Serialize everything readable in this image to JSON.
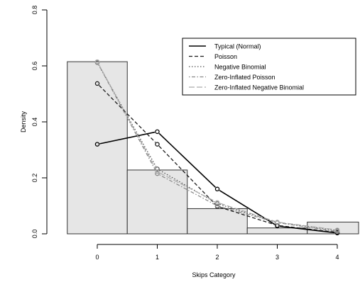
{
  "chart_data": {
    "type": "bar",
    "xlabel": "Skips Category",
    "ylabel": "Density",
    "xlim": [
      -0.5,
      4.5
    ],
    "ylim": [
      0,
      0.8
    ],
    "x_ticks": [
      0,
      1,
      2,
      3,
      4
    ],
    "x_tick_labels": [
      "0",
      "1",
      "2",
      "3",
      "4"
    ],
    "y_ticks": [
      0.0,
      0.2,
      0.4,
      0.6,
      0.8
    ],
    "y_tick_labels": [
      "0.0",
      "0.2",
      "0.4",
      "0.6",
      "0.8"
    ],
    "grid": false,
    "legend_position": "top-right",
    "bars": {
      "categories": [
        0,
        1,
        2,
        3,
        4
      ],
      "values": [
        0.615,
        0.228,
        0.09,
        0.021,
        0.042
      ]
    },
    "series": [
      {
        "name": "Typical (Normal)",
        "x": [
          0,
          1,
          2,
          3,
          4
        ],
        "values": [
          0.32,
          0.365,
          0.16,
          0.028,
          0.003
        ],
        "color": "#000000",
        "dash": "solid",
        "width": 1.6
      },
      {
        "name": "Poisson",
        "x": [
          0,
          1,
          2,
          3,
          4
        ],
        "values": [
          0.537,
          0.32,
          0.098,
          0.03,
          0.005
        ],
        "color": "#1a1a1a",
        "dash": "dashed",
        "width": 1.3
      },
      {
        "name": "Negative Binomial",
        "x": [
          0,
          1,
          2,
          3,
          4
        ],
        "values": [
          0.612,
          0.232,
          0.108,
          0.04,
          0.012
        ],
        "color": "#555555",
        "dash": "dotted",
        "width": 1.3
      },
      {
        "name": "Zero-Inflated Poisson",
        "x": [
          0,
          1,
          2,
          3,
          4
        ],
        "values": [
          0.613,
          0.215,
          0.1,
          0.04,
          0.008
        ],
        "color": "#888888",
        "dash": "dotdash",
        "width": 1.2
      },
      {
        "name": "Zero-Inflated Negative Binomial",
        "x": [
          0,
          1,
          2,
          3,
          4
        ],
        "values": [
          0.615,
          0.222,
          0.112,
          0.042,
          0.014
        ],
        "color": "#aaaaaa",
        "dash": "longdash",
        "width": 1.2
      }
    ]
  }
}
